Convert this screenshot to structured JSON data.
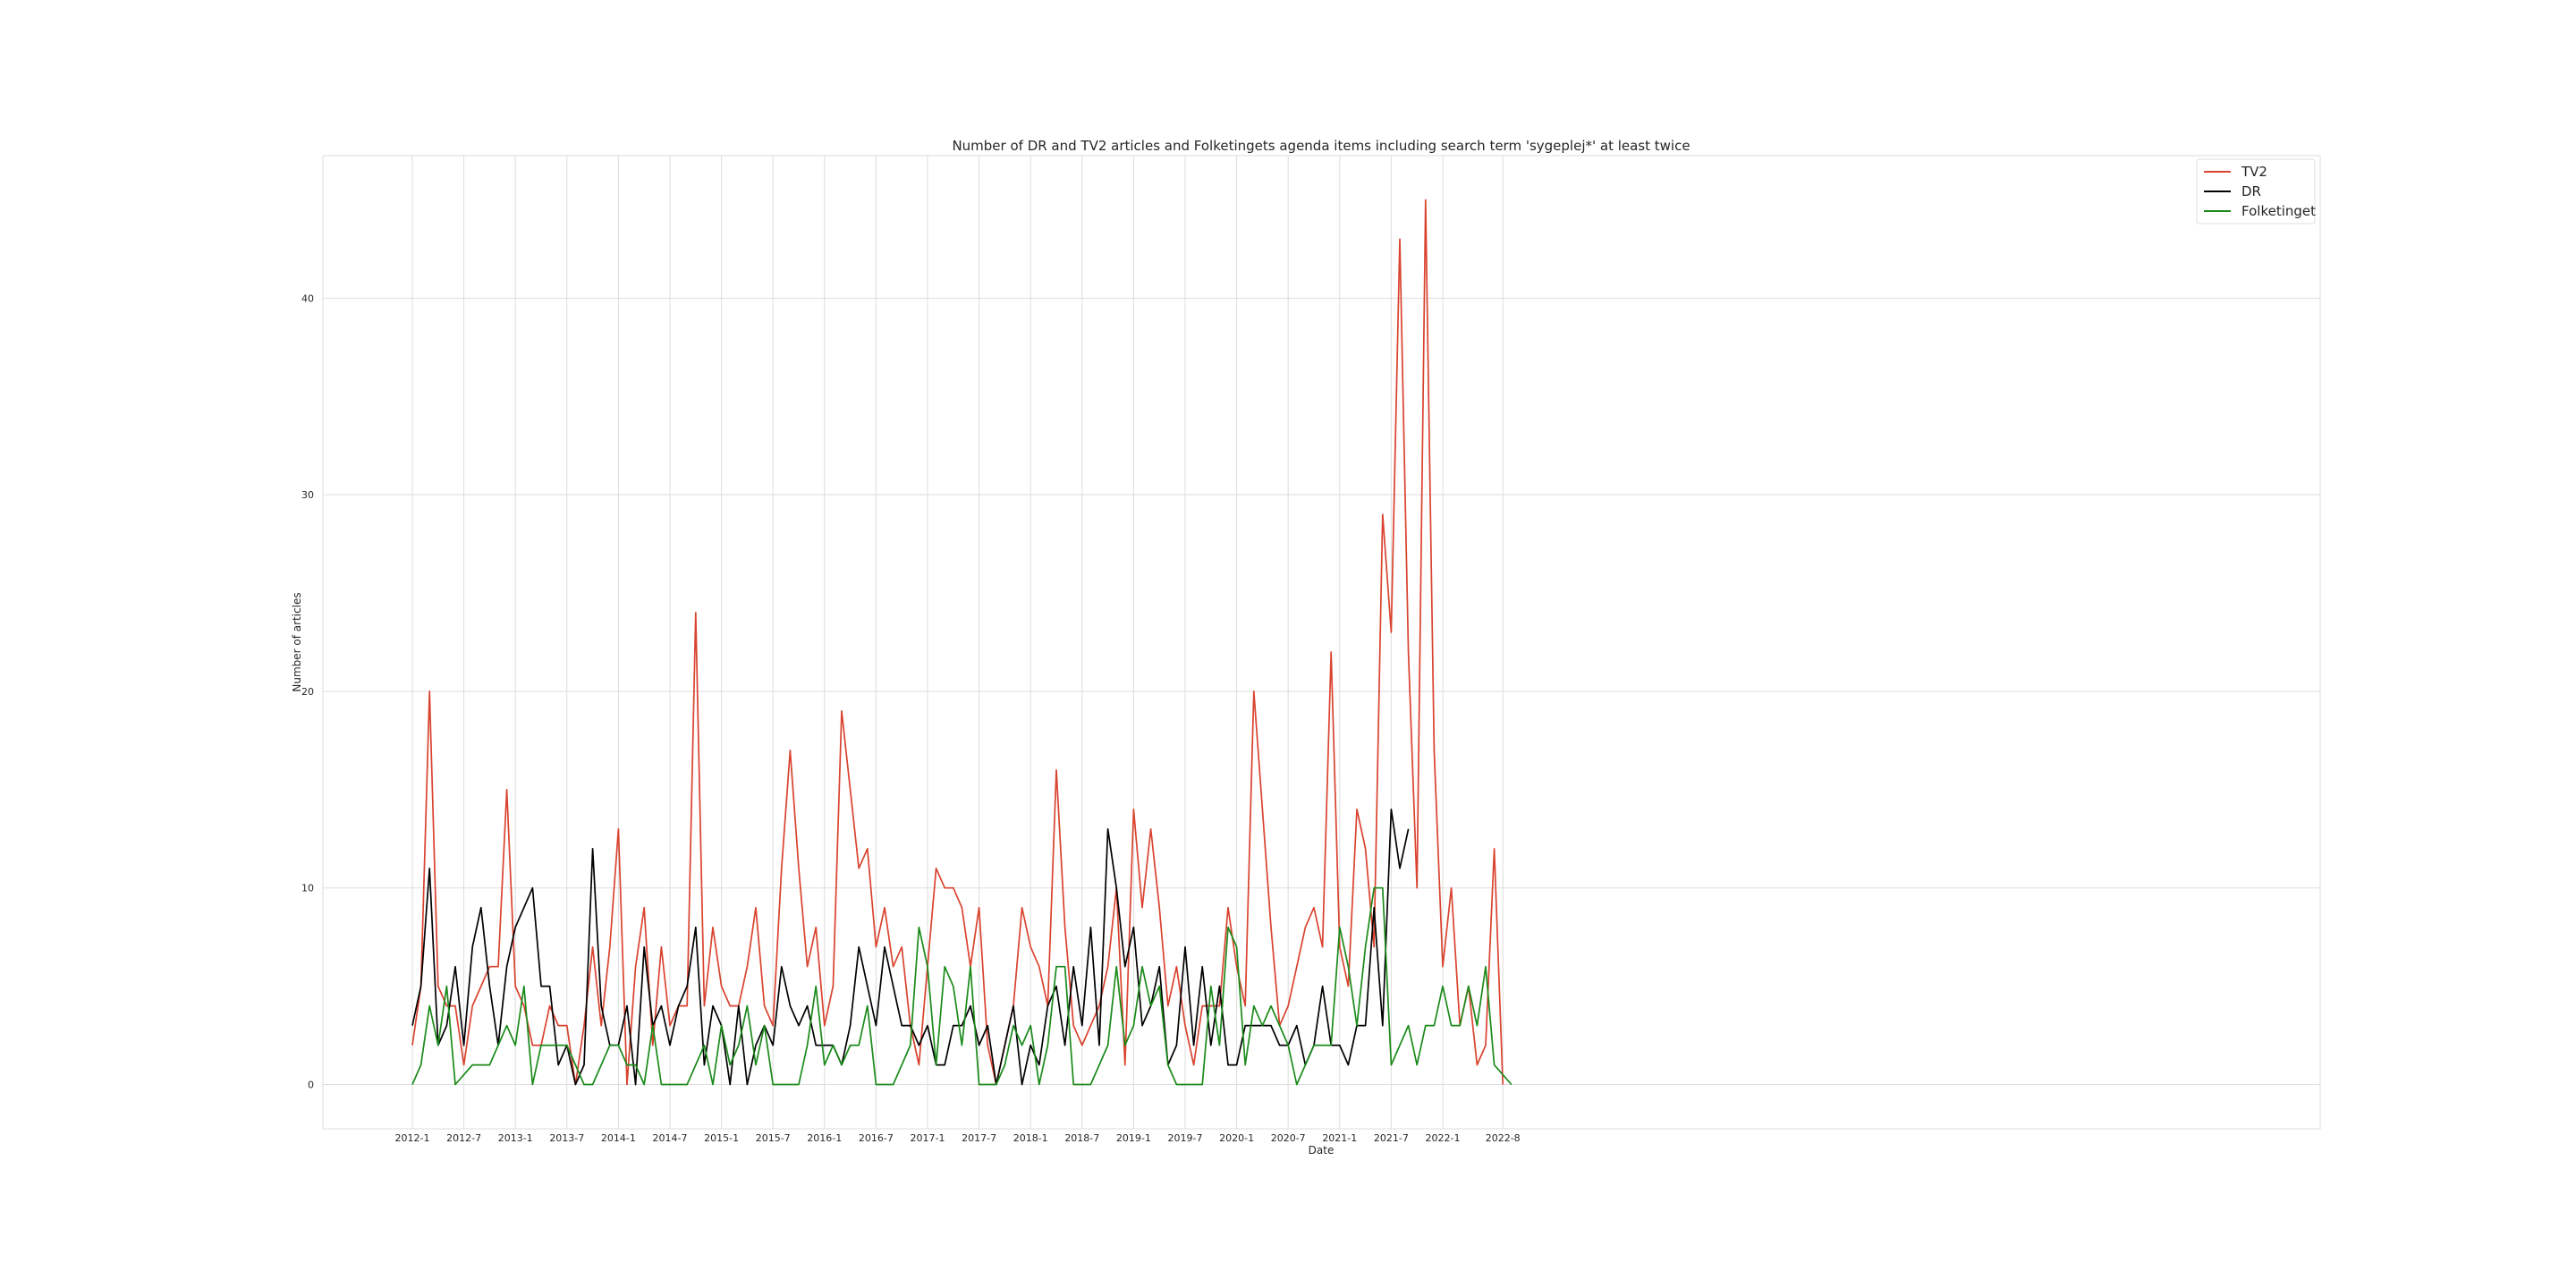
{
  "chart_data": {
    "type": "line",
    "title": "Number of DR and TV2 articles and Folketingets agenda items including search term 'sygeplej*' at least twice",
    "xlabel": "Date",
    "ylabel": "Number of articles",
    "x_ticks": [
      "2012-1",
      "2012-7",
      "2013-1",
      "2013-7",
      "2014-1",
      "2014-7",
      "2015-1",
      "2015-7",
      "2016-1",
      "2016-7",
      "2017-1",
      "2017-7",
      "2018-1",
      "2018-7",
      "2019-1",
      "2019-7",
      "2020-1",
      "2020-7",
      "2021-1",
      "2021-7",
      "2022-1",
      "2022-8"
    ],
    "y_ticks": [
      0,
      10,
      20,
      30,
      40
    ],
    "ylim": [
      -2.25,
      47.25
    ],
    "grid": true,
    "legend_position": "top-right",
    "series": [
      {
        "name": "TV2",
        "color": "#d9432f",
        "values": [
          2,
          5,
          20,
          5,
          4,
          4,
          1,
          4,
          5,
          6,
          6,
          15,
          5,
          4,
          2,
          2,
          4,
          3,
          3,
          0,
          3,
          7,
          3,
          7,
          13,
          0,
          6,
          9,
          2,
          7,
          3,
          4,
          4,
          24,
          4,
          8,
          5,
          4,
          4,
          6,
          9,
          4,
          3,
          11,
          17,
          11,
          6,
          8,
          3,
          5,
          19,
          15,
          11,
          12,
          7,
          9,
          6,
          7,
          3,
          1,
          6,
          11,
          10,
          10,
          9,
          6,
          9,
          2,
          0,
          2,
          4,
          9,
          7,
          6,
          4,
          16,
          8,
          3,
          2,
          3,
          4,
          6,
          10,
          1,
          14,
          9,
          13,
          9,
          4,
          6,
          3,
          1,
          4,
          4,
          4,
          9,
          6,
          4,
          20,
          14,
          8,
          3,
          4,
          6,
          8,
          9,
          7,
          22,
          7,
          5,
          14,
          12,
          7,
          29,
          23,
          43,
          22,
          10,
          45,
          17,
          6,
          10,
          3,
          5,
          1,
          2,
          12,
          0
        ]
      },
      {
        "name": "DR",
        "color": "#000000",
        "values": [
          3,
          5,
          11,
          2,
          3,
          6,
          2,
          7,
          9,
          5,
          2,
          6,
          8,
          9,
          10,
          5,
          5,
          1,
          2,
          0,
          1,
          12,
          4,
          2,
          2,
          4,
          0,
          7,
          3,
          4,
          2,
          4,
          5,
          8,
          1,
          4,
          3,
          0,
          4,
          0,
          2,
          3,
          2,
          6,
          4,
          3,
          4,
          2,
          2,
          2,
          1,
          3,
          7,
          5,
          3,
          7,
          5,
          3,
          3,
          2,
          3,
          1,
          1,
          3,
          3,
          4,
          2,
          3,
          0,
          2,
          4,
          0,
          2,
          1,
          4,
          5,
          2,
          6,
          3,
          8,
          2,
          13,
          10,
          6,
          8,
          3,
          4,
          6,
          1,
          2,
          7,
          2,
          6,
          2,
          5,
          1,
          1,
          3,
          3,
          3,
          3,
          2,
          2,
          3,
          1,
          2,
          5,
          2,
          2,
          1,
          3,
          3,
          9,
          3,
          14,
          11,
          13
        ]
      },
      {
        "name": "Folketinget",
        "color": "#1a8a1a",
        "values": [
          0,
          1,
          4,
          2,
          5,
          0,
          0.5,
          1,
          1,
          1,
          2,
          3,
          2,
          5,
          0,
          2,
          2,
          2,
          2,
          1,
          0,
          0,
          1,
          2,
          2,
          1,
          1,
          0,
          3,
          0,
          0,
          0,
          0,
          1,
          2,
          0,
          3,
          1,
          2,
          4,
          1,
          3,
          0,
          0,
          0,
          0,
          2,
          5,
          1,
          2,
          1,
          2,
          2,
          4,
          0,
          0,
          0,
          1,
          2,
          8,
          6,
          1,
          6,
          5,
          2,
          6,
          0,
          0,
          0,
          1,
          3,
          2,
          3,
          0,
          2,
          6,
          6,
          0,
          0,
          0,
          1,
          2,
          6,
          2,
          3,
          6,
          4,
          5,
          1,
          0,
          0,
          0,
          0,
          5,
          2,
          8,
          7,
          1,
          4,
          3,
          4,
          3,
          2,
          0,
          1,
          2,
          2,
          2,
          8,
          6,
          3,
          7,
          10,
          10,
          1,
          2,
          3,
          1,
          3,
          3,
          5,
          3,
          3,
          5,
          3,
          6,
          1,
          0.5,
          0
        ]
      }
    ]
  }
}
